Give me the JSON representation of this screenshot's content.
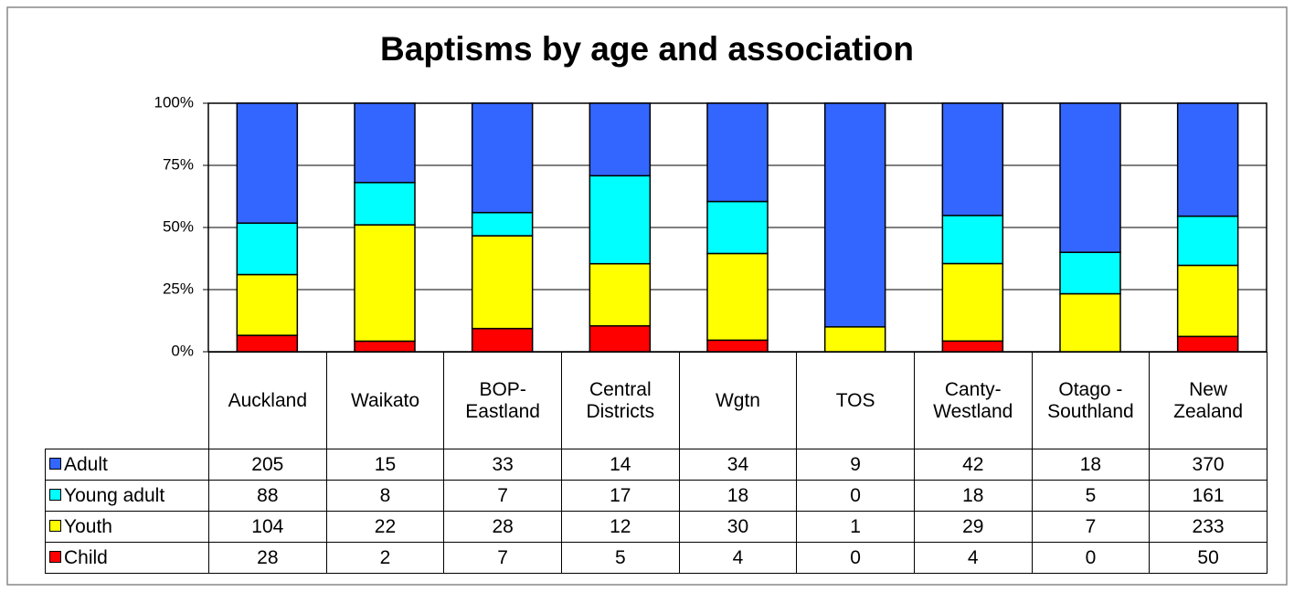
{
  "chart_data": {
    "type": "bar",
    "stacking": "percent",
    "title": "Baptisms by age and association",
    "categories": [
      "Auckland",
      "Waikato",
      "BOP-Eastland",
      "Central Districts",
      "Wgtn",
      "TOS",
      "Canty-Westland",
      "Otago - Southland",
      "New Zealand"
    ],
    "series": [
      {
        "name": "Adult",
        "color": "#3366ff",
        "values": [
          205,
          15,
          33,
          14,
          34,
          9,
          42,
          18,
          370
        ]
      },
      {
        "name": "Young adult",
        "color": "#00ffff",
        "values": [
          88,
          8,
          7,
          17,
          18,
          0,
          18,
          5,
          161
        ]
      },
      {
        "name": "Youth",
        "color": "#ffff00",
        "values": [
          104,
          22,
          28,
          12,
          30,
          1,
          29,
          7,
          233
        ]
      },
      {
        "name": "Child",
        "color": "#ff0000",
        "values": [
          28,
          2,
          7,
          5,
          4,
          0,
          4,
          0,
          50
        ]
      }
    ],
    "ylim": [
      0,
      100
    ],
    "yticks": [
      {
        "value": 0,
        "label": "0%"
      },
      {
        "value": 25,
        "label": "25%"
      },
      {
        "value": 50,
        "label": "50%"
      },
      {
        "value": 75,
        "label": "75%"
      },
      {
        "value": 100,
        "label": "100%"
      }
    ],
    "grid": true
  }
}
